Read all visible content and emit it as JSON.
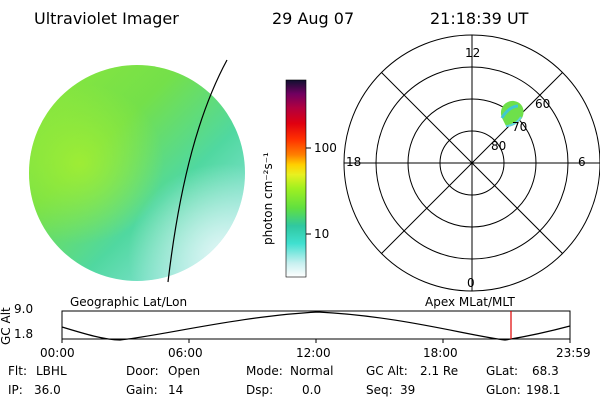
{
  "header": {
    "instrument": "Ultraviolet Imager",
    "date": "29 Aug 07",
    "time": "21:18:39 UT"
  },
  "colorbar": {
    "unit_label": "photon cm⁻²s⁻¹",
    "ticks": [
      "100",
      "10"
    ],
    "scale": "log",
    "colors": [
      "#ffffff",
      "#c8f0f0",
      "#40e0d0",
      "#30c8a0",
      "#60e040",
      "#a0f020",
      "#e8f020",
      "#ffd000",
      "#ff8000",
      "#ff3000",
      "#e00010",
      "#b00040",
      "#700060",
      "#300040",
      "#000020"
    ]
  },
  "polar_plot": {
    "labels": {
      "top": "12",
      "left": "18",
      "right": "6",
      "bottom": "0",
      "ring_60": "60",
      "ring_70": "70",
      "ring_80": "80"
    }
  },
  "timeline": {
    "left_title": "Geographic Lat/Lon",
    "right_title": "Apex MLat/MLT",
    "y_axis_label": "GC Alt",
    "y_ticks": [
      "9.0",
      "1.8"
    ],
    "x_ticks": [
      "00:00",
      "06:00",
      "12:00",
      "18:00",
      "23:59"
    ],
    "current_marker_color": "#e00000"
  },
  "info": {
    "filter_label": "Flt:",
    "filter_value": "LBHL",
    "ip_label": "IP:",
    "ip_value": "36.0",
    "door_label": "Door:",
    "door_value": "Open",
    "gain_label": "Gain:",
    "gain_value": "14",
    "mode_label": "Mode:",
    "mode_value": "Normal",
    "dsp_label": "Dsp:",
    "dsp_value": "0.0",
    "gcalt_label": "GC Alt:",
    "gcalt_value": "2.1 Re",
    "seq_label": "Seq:",
    "seq_value": "39",
    "glat_label": "GLat:",
    "glat_value": "68.3",
    "glon_label": "GLon:",
    "glon_value": "198.1"
  }
}
